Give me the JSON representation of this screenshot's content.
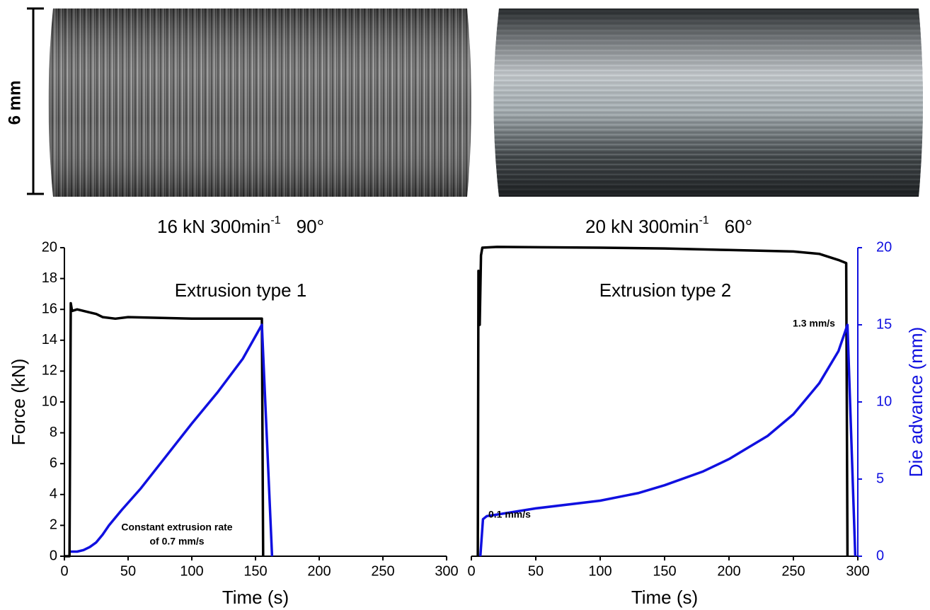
{
  "scale_bar": {
    "label": "6 mm"
  },
  "chart_data": [
    {
      "type": "line",
      "title": "16 kN  300min",
      "title_sup": "-1",
      "title_after": "90°",
      "x_label": "Time (s)",
      "y_label": "Force (kN)",
      "xlim": [
        0,
        300
      ],
      "xticks": [
        0,
        50,
        100,
        150,
        200,
        250,
        300
      ],
      "ylim": [
        0,
        20
      ],
      "yticks": [
        0,
        2,
        4,
        6,
        8,
        10,
        12,
        14,
        16,
        18,
        20
      ],
      "annotations": [
        "Extrusion type 1",
        "Constant extrusion rate",
        "of 0.7 mm/s"
      ],
      "series": [
        {
          "color": "#000000",
          "x": [
            0,
            4,
            5,
            6,
            10,
            20,
            25,
            30,
            40,
            50,
            100,
            155,
            156
          ],
          "values": [
            0,
            0,
            16.4,
            15.9,
            16,
            15.8,
            15.7,
            15.5,
            15.4,
            15.5,
            15.4,
            15.4,
            0
          ]
        },
        {
          "color": "#1010e0",
          "x": [
            5,
            10,
            15,
            20,
            25,
            30,
            35,
            45,
            60,
            80,
            100,
            120,
            140,
            155,
            163
          ],
          "values": [
            0.3,
            0.3,
            0.4,
            0.6,
            0.9,
            1.4,
            2,
            3,
            4.4,
            6.5,
            8.6,
            10.6,
            12.8,
            15,
            0
          ]
        }
      ]
    },
    {
      "type": "line",
      "title": "20 kN  300min",
      "title_sup": "-1",
      "title_after": "60°",
      "x_label": "Time (s)",
      "y2_label": "Die advance (mm)",
      "xlim": [
        0,
        300
      ],
      "xticks": [
        0,
        50,
        100,
        150,
        200,
        250,
        300
      ],
      "ylim": [
        0,
        20
      ],
      "y2lim": [
        0,
        20
      ],
      "y2ticks": [
        0,
        5,
        10,
        15,
        20
      ],
      "y2_color": "#1010e0",
      "annotations": [
        "Extrusion type 2",
        "0.1 mm/s",
        "1.3 mm/s"
      ],
      "series": [
        {
          "color": "#000000",
          "x": [
            5,
            5.5,
            6.5,
            7.5,
            8.5,
            20,
            100,
            150,
            200,
            250,
            270,
            285,
            291,
            292
          ],
          "values": [
            0,
            18.5,
            15,
            19.5,
            20,
            20.05,
            20,
            19.95,
            19.85,
            19.75,
            19.6,
            19.2,
            19,
            0
          ]
        },
        {
          "color": "#1010e0",
          "axis": "y2",
          "x": [
            7,
            9,
            12,
            20,
            50,
            100,
            130,
            150,
            180,
            200,
            230,
            250,
            270,
            285,
            292,
            298
          ],
          "values": [
            0,
            2.4,
            2.6,
            2.7,
            3.1,
            3.6,
            4.1,
            4.6,
            5.5,
            6.3,
            7.8,
            9.2,
            11.2,
            13.3,
            15,
            0
          ]
        }
      ]
    }
  ]
}
